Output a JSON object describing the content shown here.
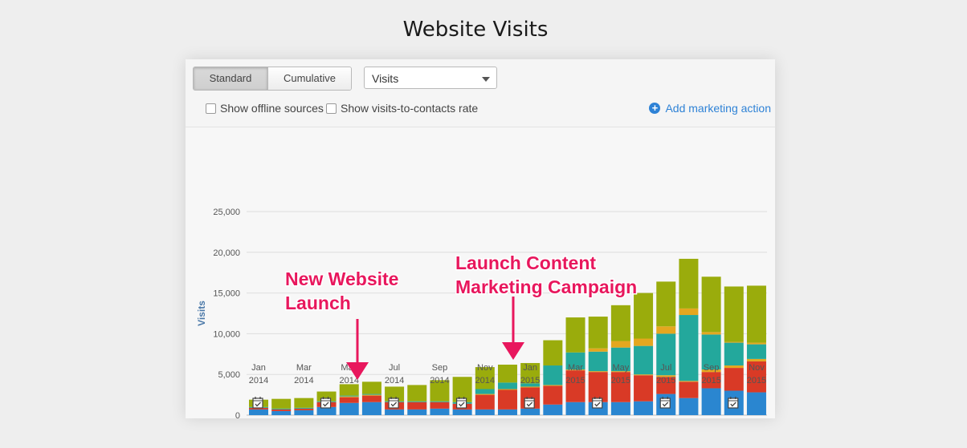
{
  "page": {
    "title": "Website Visits"
  },
  "controls": {
    "standard_label": "Standard",
    "cumulative_label": "Cumulative",
    "metric_selected": "Visits",
    "offline_label": "Show offline sources",
    "rate_label": "Show visits-to-contacts rate",
    "add_action_label": "Add marketing action"
  },
  "colors": {
    "blue": "#2a86d0",
    "red": "#d93a26",
    "orange": "#e4a71f",
    "teal": "#23a89c",
    "olive": "#9aac0c",
    "annotation": "#e8175d",
    "accent": "#2e82d6"
  },
  "chart_data": {
    "type": "bar",
    "stacked": true,
    "title": "",
    "xlabel": "",
    "ylabel": "Visits",
    "ylim": [
      0,
      25000
    ],
    "yticks": [
      0,
      5000,
      10000,
      15000,
      20000,
      25000
    ],
    "ytick_labels": [
      "0",
      "5,000",
      "10,000",
      "15,000",
      "20,000",
      "25,000"
    ],
    "categories": [
      "Jan 2014",
      "Feb 2014",
      "Mar 2014",
      "Apr 2014",
      "May 2014",
      "Jun 2014",
      "Jul 2014",
      "Aug 2014",
      "Sep 2014",
      "Oct 2014",
      "Nov 2014",
      "Dec 2014",
      "Jan 2015",
      "Feb 2015",
      "Mar 2015",
      "Apr 2015",
      "May 2015",
      "Jun 2015",
      "Jul 2015",
      "Aug 2015",
      "Sep 2015",
      "Oct 2015",
      "Nov 2015"
    ],
    "x_tick_labels": [
      {
        "index": 0,
        "line1": "Jan",
        "line2": "2014"
      },
      {
        "index": 2,
        "line1": "Mar",
        "line2": "2014"
      },
      {
        "index": 4,
        "line1": "May",
        "line2": "2014"
      },
      {
        "index": 6,
        "line1": "Jul",
        "line2": "2014"
      },
      {
        "index": 8,
        "line1": "Sep",
        "line2": "2014"
      },
      {
        "index": 10,
        "line1": "Nov",
        "line2": "2014"
      },
      {
        "index": 12,
        "line1": "Jan",
        "line2": "2015"
      },
      {
        "index": 14,
        "line1": "Mar",
        "line2": "2015"
      },
      {
        "index": 16,
        "line1": "May",
        "line2": "2015"
      },
      {
        "index": 18,
        "line1": "Jul",
        "line2": "2015"
      },
      {
        "index": 20,
        "line1": "Sep",
        "line2": "2015"
      },
      {
        "index": 22,
        "line1": "Nov",
        "line2": "2015"
      }
    ],
    "series": [
      {
        "color": "blue",
        "values": [
          700,
          500,
          600,
          1000,
          1500,
          1600,
          700,
          700,
          800,
          700,
          700,
          700,
          800,
          1300,
          1600,
          1600,
          1600,
          1700,
          2600,
          2100,
          3300,
          3000,
          2800
        ]
      },
      {
        "color": "red",
        "values": [
          200,
          200,
          200,
          600,
          700,
          800,
          900,
          900,
          800,
          700,
          1800,
          2400,
          2600,
          2300,
          3900,
          3700,
          3700,
          3200,
          2100,
          2000,
          2000,
          2800,
          3800
        ]
      },
      {
        "color": "orange",
        "values": [
          0,
          0,
          0,
          0,
          100,
          100,
          0,
          0,
          0,
          0,
          100,
          100,
          100,
          100,
          100,
          100,
          100,
          100,
          200,
          100,
          300,
          300,
          300
        ]
      },
      {
        "color": "teal",
        "values": [
          100,
          100,
          100,
          100,
          100,
          100,
          100,
          100,
          100,
          200,
          600,
          800,
          400,
          2400,
          2100,
          2400,
          2900,
          3500,
          5100,
          8100,
          4300,
          2800,
          1800
        ]
      },
      {
        "color": "orange",
        "values": [
          0,
          0,
          0,
          0,
          0,
          0,
          0,
          0,
          0,
          0,
          0,
          0,
          0,
          0,
          0,
          400,
          800,
          900,
          900,
          800,
          300,
          100,
          200
        ]
      },
      {
        "color": "olive",
        "values": [
          900,
          1200,
          1200,
          1200,
          1400,
          1500,
          1800,
          2000,
          2600,
          3100,
          2700,
          2200,
          2500,
          3100,
          4300,
          3900,
          4400,
          5600,
          5500,
          6100,
          6800,
          6800,
          7000
        ]
      }
    ],
    "annotations": [
      {
        "text_line1": "New Website",
        "text_line2": "Launch",
        "index": 4
      },
      {
        "text_line1": "Launch Content",
        "text_line2": "Marketing Campaign",
        "index": 11
      }
    ],
    "marketing_action_indices": [
      0,
      3,
      6,
      9,
      12,
      15,
      18,
      21
    ],
    "grid": true
  }
}
